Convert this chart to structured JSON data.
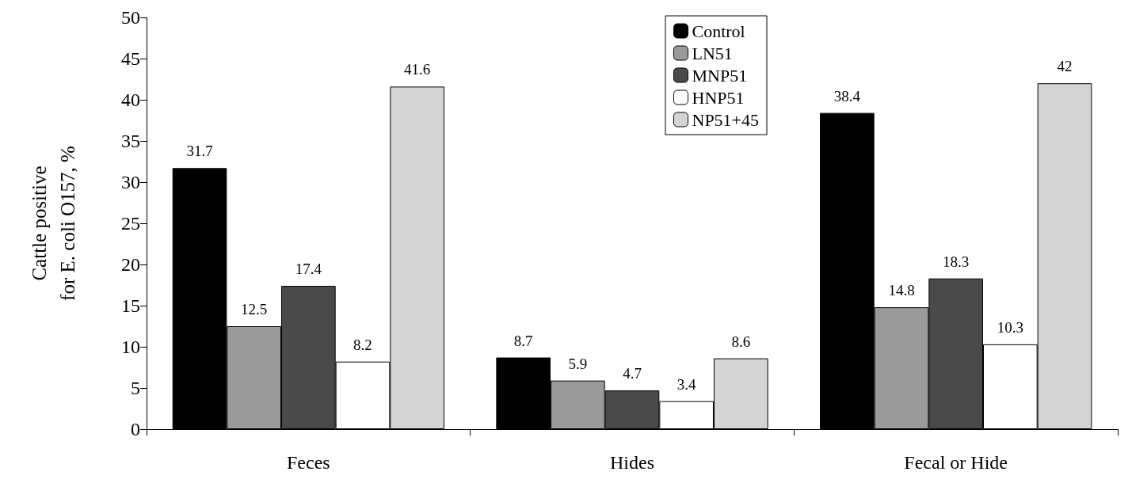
{
  "chart_data": {
    "type": "bar",
    "ylabel": "Cattle positive\nfor E. coli O157, %",
    "categories": [
      "Feces",
      "Hides",
      "Fecal or Hide"
    ],
    "series": [
      {
        "name": "Control",
        "color": "#000000",
        "values": [
          31.7,
          8.7,
          38.4
        ]
      },
      {
        "name": "LN51",
        "color": "#9a9a9a",
        "values": [
          12.5,
          5.9,
          14.8
        ]
      },
      {
        "name": "MNP51",
        "color": "#4a4a4a",
        "values": [
          17.4,
          4.7,
          18.3
        ]
      },
      {
        "name": "HNP51",
        "color": "#ffffff",
        "values": [
          8.2,
          3.4,
          10.3
        ]
      },
      {
        "name": "NP51+45",
        "color": "#d4d4d4",
        "values": [
          41.6,
          8.6,
          42
        ]
      }
    ],
    "ylim": [
      0,
      50
    ],
    "yticks": [
      0,
      5,
      10,
      15,
      20,
      25,
      30,
      35,
      40,
      45,
      50
    ],
    "grid": false,
    "legend": "top",
    "data_labels": true
  }
}
